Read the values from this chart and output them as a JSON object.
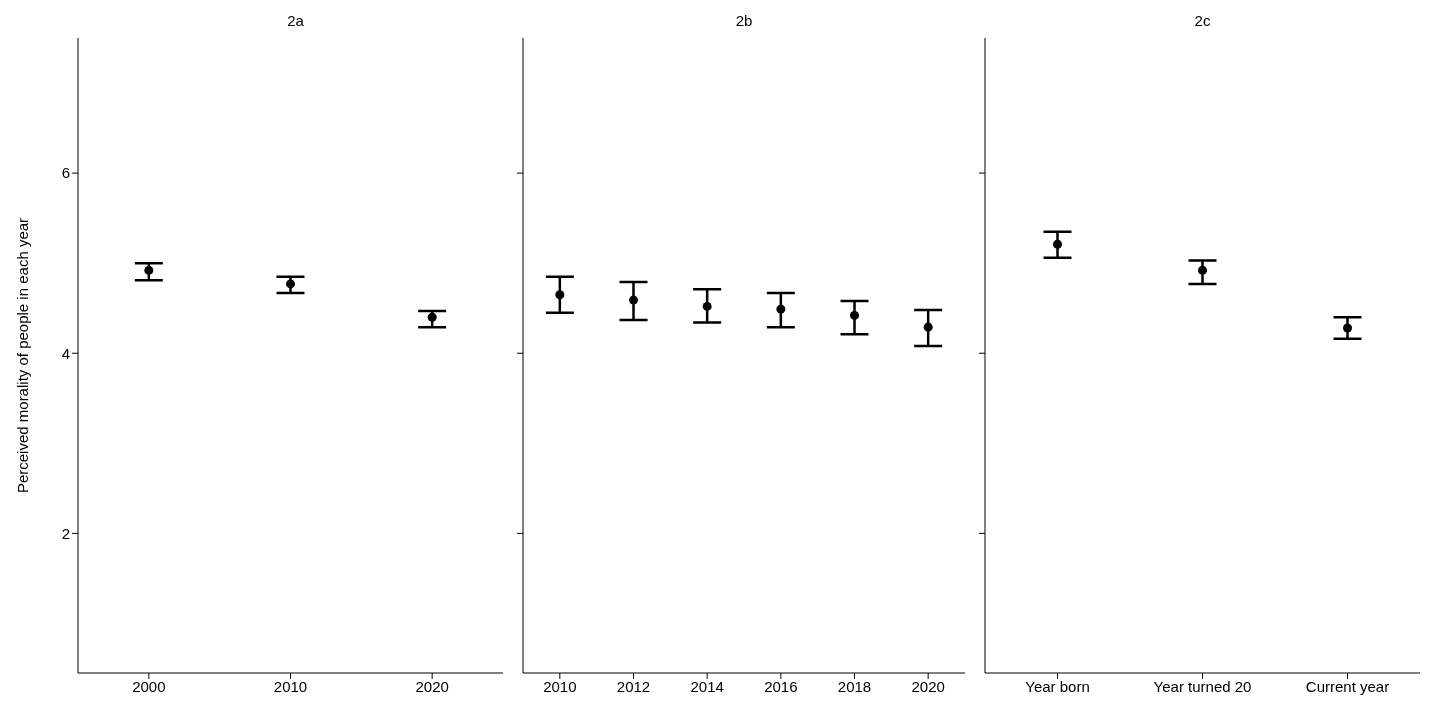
{
  "chart_data": [
    {
      "type": "scatter",
      "title": "2a",
      "ylabel": "Perceived morality of people in each year",
      "categories": [
        "2000",
        "2010",
        "2020"
      ],
      "color": "#000000",
      "marker": "circle",
      "values": [
        4.92,
        4.77,
        4.4
      ],
      "errors": [
        [
          4.81,
          5.0
        ],
        [
          4.67,
          4.85
        ],
        [
          4.29,
          4.47
        ]
      ],
      "ylim": [
        0.45,
        7.5
      ],
      "yticks": [
        2,
        4,
        6
      ],
      "grid": false
    },
    {
      "type": "scatter",
      "title": "2b",
      "categories": [
        "2010",
        "2012",
        "2014",
        "2016",
        "2018",
        "2020"
      ],
      "color": "#000000",
      "marker": "circle",
      "values": [
        4.65,
        4.59,
        4.52,
        4.49,
        4.42,
        4.29
      ],
      "errors": [
        [
          4.45,
          4.85
        ],
        [
          4.37,
          4.79
        ],
        [
          4.34,
          4.71
        ],
        [
          4.29,
          4.67
        ],
        [
          4.21,
          4.58
        ],
        [
          4.08,
          4.48
        ]
      ],
      "ylim": [
        0.45,
        7.5
      ],
      "yticks": [
        2,
        4,
        6
      ],
      "grid": false,
      "tick_labels": "x"
    },
    {
      "type": "scatter",
      "title": "2c",
      "categories": [
        "Year born",
        "Year turned 20",
        "Current year"
      ],
      "color": "#000000",
      "marker": "circle",
      "values": [
        5.21,
        4.92,
        4.28
      ],
      "errors": [
        [
          5.06,
          5.35
        ],
        [
          4.77,
          5.03
        ],
        [
          4.16,
          4.4
        ]
      ],
      "ylim": [
        0.45,
        7.5
      ],
      "yticks": [
        2,
        4,
        6
      ],
      "grid": false,
      "tick_labels": "x"
    }
  ]
}
